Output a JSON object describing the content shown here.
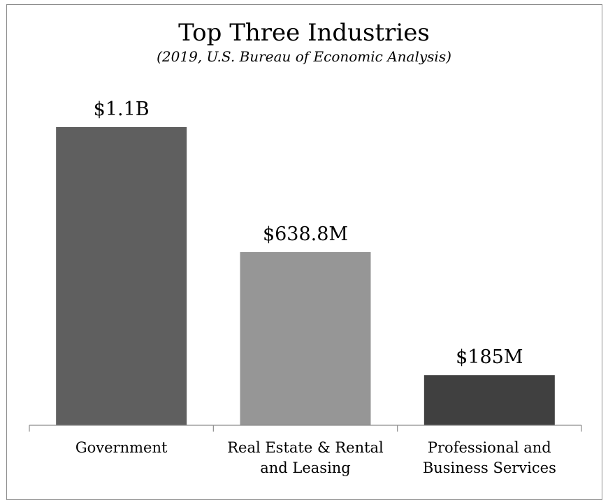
{
  "chart_data": {
    "type": "bar",
    "title": "Top Three Industries",
    "subtitle": "(2019, U.S. Bureau of Economic Analysis)",
    "categories": [
      [
        "Government"
      ],
      [
        "Real Estate & Rental",
        "and Leasing"
      ],
      [
        "Professional and",
        "Business Services"
      ]
    ],
    "values": [
      1100,
      638.8,
      185
    ],
    "value_unit": "millions USD",
    "data_labels": [
      "$1.1B",
      "$638.8M",
      "$185M"
    ],
    "bar_colors": [
      "#5f5f5f",
      "#969696",
      "#404040"
    ],
    "ylim": [
      0,
      1100
    ],
    "grid": false,
    "legend": "none"
  }
}
